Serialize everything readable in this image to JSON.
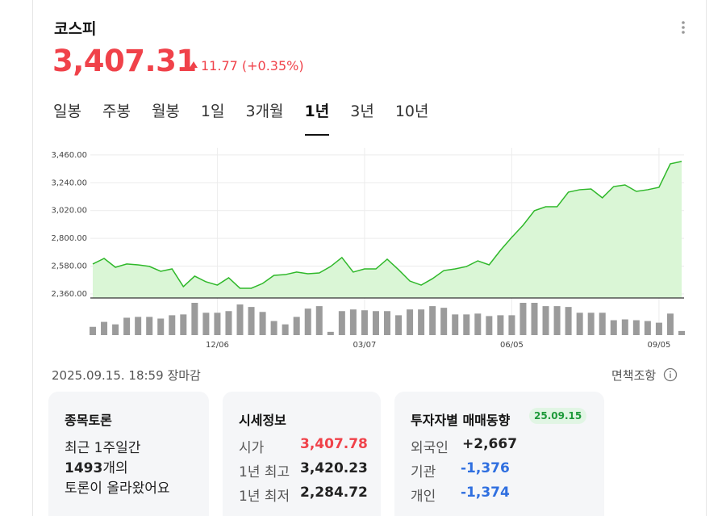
{
  "header": {
    "title": "코스피",
    "price": "3,407.31",
    "change": "11.77 (+0.35%)"
  },
  "tabs": [
    "일봉",
    "주봉",
    "월봉",
    "1일",
    "3개월",
    "1년",
    "3년",
    "10년"
  ],
  "selected_tab": 5,
  "chart_data": {
    "type": "line",
    "categories": [
      null,
      null,
      null,
      null,
      null,
      null,
      null,
      null,
      null,
      null,
      null,
      "12/06",
      null,
      null,
      null,
      null,
      null,
      null,
      null,
      null,
      null,
      null,
      null,
      null,
      "03/07",
      null,
      null,
      null,
      null,
      null,
      null,
      null,
      null,
      null,
      null,
      null,
      null,
      "06/05",
      null,
      null,
      null,
      null,
      null,
      null,
      null,
      null,
      null,
      null,
      null,
      null,
      "09/05",
      null,
      null
    ],
    "series": [
      {
        "color": "#2fb82a",
        "fill": "#daf6d6",
        "values": [
          2597,
          2641,
          2571,
          2597,
          2590,
          2578,
          2539,
          2558,
          2418,
          2501,
          2456,
          2430,
          2488,
          2405,
          2405,
          2443,
          2507,
          2513,
          2533,
          2520,
          2526,
          2577,
          2648,
          2533,
          2558,
          2558,
          2635,
          2552,
          2462,
          2430,
          2481,
          2545,
          2558,
          2577,
          2622,
          2590,
          2705,
          2808,
          2904,
          3019,
          3050,
          3050,
          3166,
          3185,
          3191,
          3121,
          3210,
          3223,
          3172,
          3185,
          3204,
          3390,
          3409
        ]
      }
    ],
    "volume": {
      "color": "#9b9b9b",
      "values": [
        10,
        16,
        13,
        21,
        22,
        22,
        20,
        24,
        25,
        39,
        27,
        27,
        29,
        37,
        34,
        28,
        17,
        13,
        22,
        32,
        35,
        4,
        29,
        31,
        30,
        29,
        29,
        24,
        31,
        31,
        35,
        33,
        25,
        25,
        26,
        23,
        24,
        24,
        39,
        39,
        35,
        35,
        34,
        27,
        27,
        27,
        18,
        19,
        18,
        17,
        15,
        26,
        5
      ]
    },
    "ylim": [
      2328,
      3517
    ],
    "yticks": [
      {
        "value": 2360,
        "label": "2,360.00"
      },
      {
        "value": 2580,
        "label": "2,580.00"
      },
      {
        "value": 2800,
        "label": "2,800.00"
      },
      {
        "value": 3020,
        "label": "3,020.00"
      },
      {
        "value": 3240,
        "label": "3,240.00"
      },
      {
        "value": 3460,
        "label": "3,460.00"
      }
    ],
    "grid": true
  },
  "timestamp": "2025.09.15. 18:59",
  "status": "장마감",
  "disclaimer": "면책조항",
  "discussion": {
    "title": "종목토론",
    "line1": "최근 1주일간",
    "count": "1493",
    "count_suffix": "개의",
    "line3": "토론이 올라왔어요"
  },
  "quote": {
    "title": "시세정보",
    "rows": [
      [
        "시가",
        "3,407.78"
      ],
      [
        "1년 최고",
        "3,420.23"
      ],
      [
        "1년 최저",
        "2,284.72"
      ]
    ]
  },
  "investors": {
    "title": "투자자별 매매동향",
    "date": "25.09.15",
    "rows": [
      [
        "외국인",
        "+2,667"
      ],
      [
        "기관",
        "-1,376"
      ],
      [
        "개인",
        "-1,374"
      ]
    ]
  }
}
